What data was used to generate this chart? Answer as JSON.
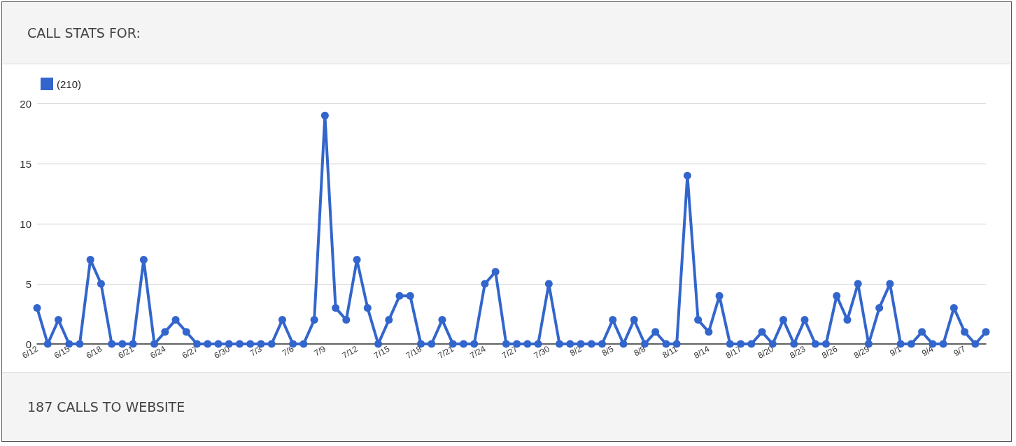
{
  "chart_data": {
    "type": "line",
    "title": "CALL STATS FOR:",
    "annotations": [
      "187 CALLS TO WEBSITE"
    ],
    "categories": [
      "6/12",
      null,
      null,
      "6/15",
      null,
      null,
      "6/18",
      null,
      null,
      "6/21",
      null,
      null,
      "6/24",
      null,
      null,
      "6/27",
      null,
      null,
      "6/30",
      null,
      null,
      "7/3",
      null,
      null,
      "7/6",
      null,
      null,
      "7/9",
      null,
      null,
      "7/12",
      null,
      null,
      "7/15",
      null,
      null,
      "7/18",
      null,
      null,
      "7/21",
      null,
      null,
      "7/24",
      null,
      null,
      "7/27",
      null,
      null,
      "7/30",
      null,
      null,
      "8/2",
      null,
      null,
      "8/5",
      null,
      null,
      "8/8",
      null,
      null,
      "8/11",
      null,
      null,
      "8/14",
      null,
      null,
      "8/17",
      null,
      null,
      "8/20",
      null,
      null,
      "8/23",
      null,
      null,
      "8/26",
      null,
      null,
      "8/29",
      null,
      null,
      "9/1",
      null,
      null,
      "9/4",
      null,
      null,
      "9/7",
      null,
      null
    ],
    "series": [
      {
        "name": "(210)",
        "color": "#3366cc",
        "values": [
          3,
          0,
          2,
          0,
          0,
          7,
          5,
          0,
          0,
          0,
          7,
          0,
          1,
          2,
          1,
          0,
          0,
          0,
          0,
          0,
          0,
          0,
          0,
          2,
          0,
          0,
          2,
          19,
          3,
          2,
          7,
          3,
          0,
          2,
          4,
          4,
          0,
          0,
          2,
          0,
          0,
          0,
          5,
          6,
          0,
          0,
          0,
          0,
          5,
          0,
          0,
          0,
          0,
          0,
          2,
          0,
          2,
          0,
          1,
          0,
          0,
          14,
          2,
          1,
          4,
          0,
          0,
          0,
          1,
          0,
          2,
          0,
          2,
          0,
          0,
          4,
          2,
          5,
          0,
          3,
          5,
          0,
          0,
          1,
          0,
          0,
          3,
          1,
          0,
          1
        ]
      }
    ],
    "ylim": [
      0,
      20
    ],
    "yticks": [
      0,
      5,
      10,
      15,
      20
    ],
    "grid": "y",
    "legend": "top left",
    "marker": "circle",
    "line_style": "solid"
  }
}
